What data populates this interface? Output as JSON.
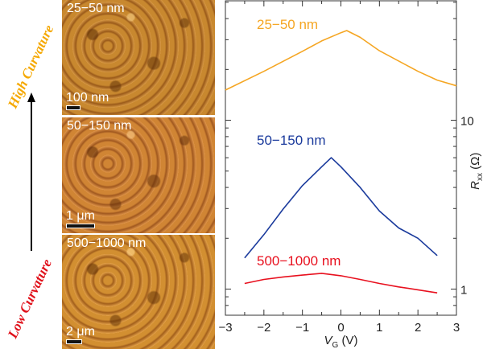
{
  "left_panel": {
    "high_label": "High Curvature",
    "low_label": "Low Curvature",
    "high_color": "#f5a800",
    "low_color": "#e0101a",
    "images": [
      {
        "label": "25−50 nm",
        "scale": "100 nm"
      },
      {
        "label": "50−150 nm",
        "scale": "1 μm"
      },
      {
        "label": "500−1000 nm",
        "scale": "2 μm"
      }
    ]
  },
  "chart_data": {
    "type": "line",
    "xlabel": "V",
    "xlabel_sub": "G",
    "xlabel_unit": " (V)",
    "ylabel": "R",
    "ylabel_sub": "xx",
    "ylabel_unit": " (Ω)",
    "xlim": [
      -3,
      3
    ],
    "ylim": [
      0.7,
      51
    ],
    "yscale": "log",
    "y_axis_side": "right",
    "x_ticks": [
      "−3",
      "−2",
      "−1",
      "0",
      "1",
      "2",
      "3"
    ],
    "y_ticks": [
      "1",
      "10"
    ],
    "series": [
      {
        "name": "25−50 nm",
        "color": "#f5a623",
        "x": [
          -3,
          -2,
          -1,
          -0.5,
          0,
          0.15,
          0.5,
          1,
          2,
          2.5,
          3
        ],
        "y": [
          15.1,
          19.5,
          25.6,
          29.5,
          33,
          34,
          31,
          25.8,
          19.5,
          17.3,
          16
        ]
      },
      {
        "name": "50−150 nm",
        "color": "#1a3a9c",
        "x": [
          -2.5,
          -2,
          -1.5,
          -1,
          -0.5,
          -0.25,
          0,
          0.5,
          1,
          1.5,
          2,
          2.5
        ],
        "y": [
          1.53,
          2.1,
          2.98,
          4.1,
          5.3,
          6.0,
          5.3,
          4.0,
          2.9,
          2.3,
          2.0,
          1.58
        ]
      },
      {
        "name": "500−1000 nm",
        "color": "#e8101e",
        "x": [
          -2.5,
          -2,
          -1.5,
          -1,
          -0.5,
          0,
          0.5,
          1,
          1.5,
          2,
          2.5
        ],
        "y": [
          1.08,
          1.14,
          1.18,
          1.21,
          1.24,
          1.2,
          1.14,
          1.08,
          1.03,
          0.99,
          0.95
        ]
      }
    ]
  }
}
